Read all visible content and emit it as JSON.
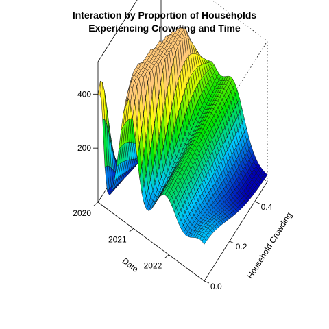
{
  "chart_data": {
    "type": "surface3d",
    "title_lines": [
      "Interaction by Proportion of Households",
      "Experiencing Crowding and Time"
    ],
    "x_axis": {
      "label": "Date",
      "range": [
        2020,
        2023
      ],
      "ticks": [
        "2020",
        "2021",
        "2022"
      ],
      "tick_values": [
        2020,
        2021,
        2022
      ]
    },
    "y_axis": {
      "label": "Household Crowding",
      "range": [
        0.0,
        0.5
      ],
      "ticks": [
        "0.0",
        "0.2",
        "0.4"
      ],
      "tick_values": [
        0.0,
        0.2,
        0.4
      ]
    },
    "z_axis": {
      "label": "",
      "range": [
        0,
        520
      ],
      "ticks": [
        "200",
        "400"
      ],
      "tick_values": [
        200,
        400
      ]
    },
    "colors": {
      "low": "#0000b4",
      "mid_low": "#00c8ff",
      "mid": "#00e600",
      "mid_high": "#ffff00",
      "high": "#ffc878"
    }
  }
}
